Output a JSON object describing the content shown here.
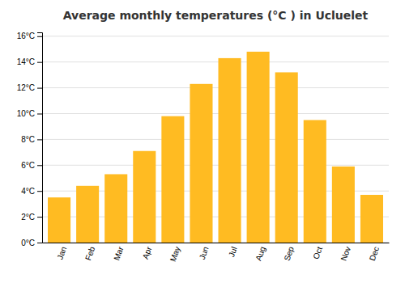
{
  "chart_data": {
    "type": "bar",
    "title": "Average monthly temperatures (°C ) in Ucluelet",
    "categories": [
      "Jan",
      "Feb",
      "Mar",
      "Apr",
      "May",
      "Jun",
      "Jul",
      "Aug",
      "Sep",
      "Oct",
      "Nov",
      "Dec"
    ],
    "values": [
      3.5,
      4.4,
      5.3,
      7.1,
      9.8,
      12.3,
      14.3,
      14.8,
      13.2,
      9.5,
      5.9,
      3.7
    ],
    "color": "#FFBB22",
    "ylim": [
      0,
      16.3
    ],
    "yticks": [
      {
        "value": 0,
        "label": "0°C"
      },
      {
        "value": 2,
        "label": "2°C"
      },
      {
        "value": 4,
        "label": "4°C"
      },
      {
        "value": 6,
        "label": "6°C"
      },
      {
        "value": 8,
        "label": "8°C"
      },
      {
        "value": 10,
        "label": "10°C"
      },
      {
        "value": 12,
        "label": "12°C"
      },
      {
        "value": 14,
        "label": "14°C"
      },
      {
        "value": 16,
        "label": "16°C"
      }
    ],
    "grid": true
  }
}
